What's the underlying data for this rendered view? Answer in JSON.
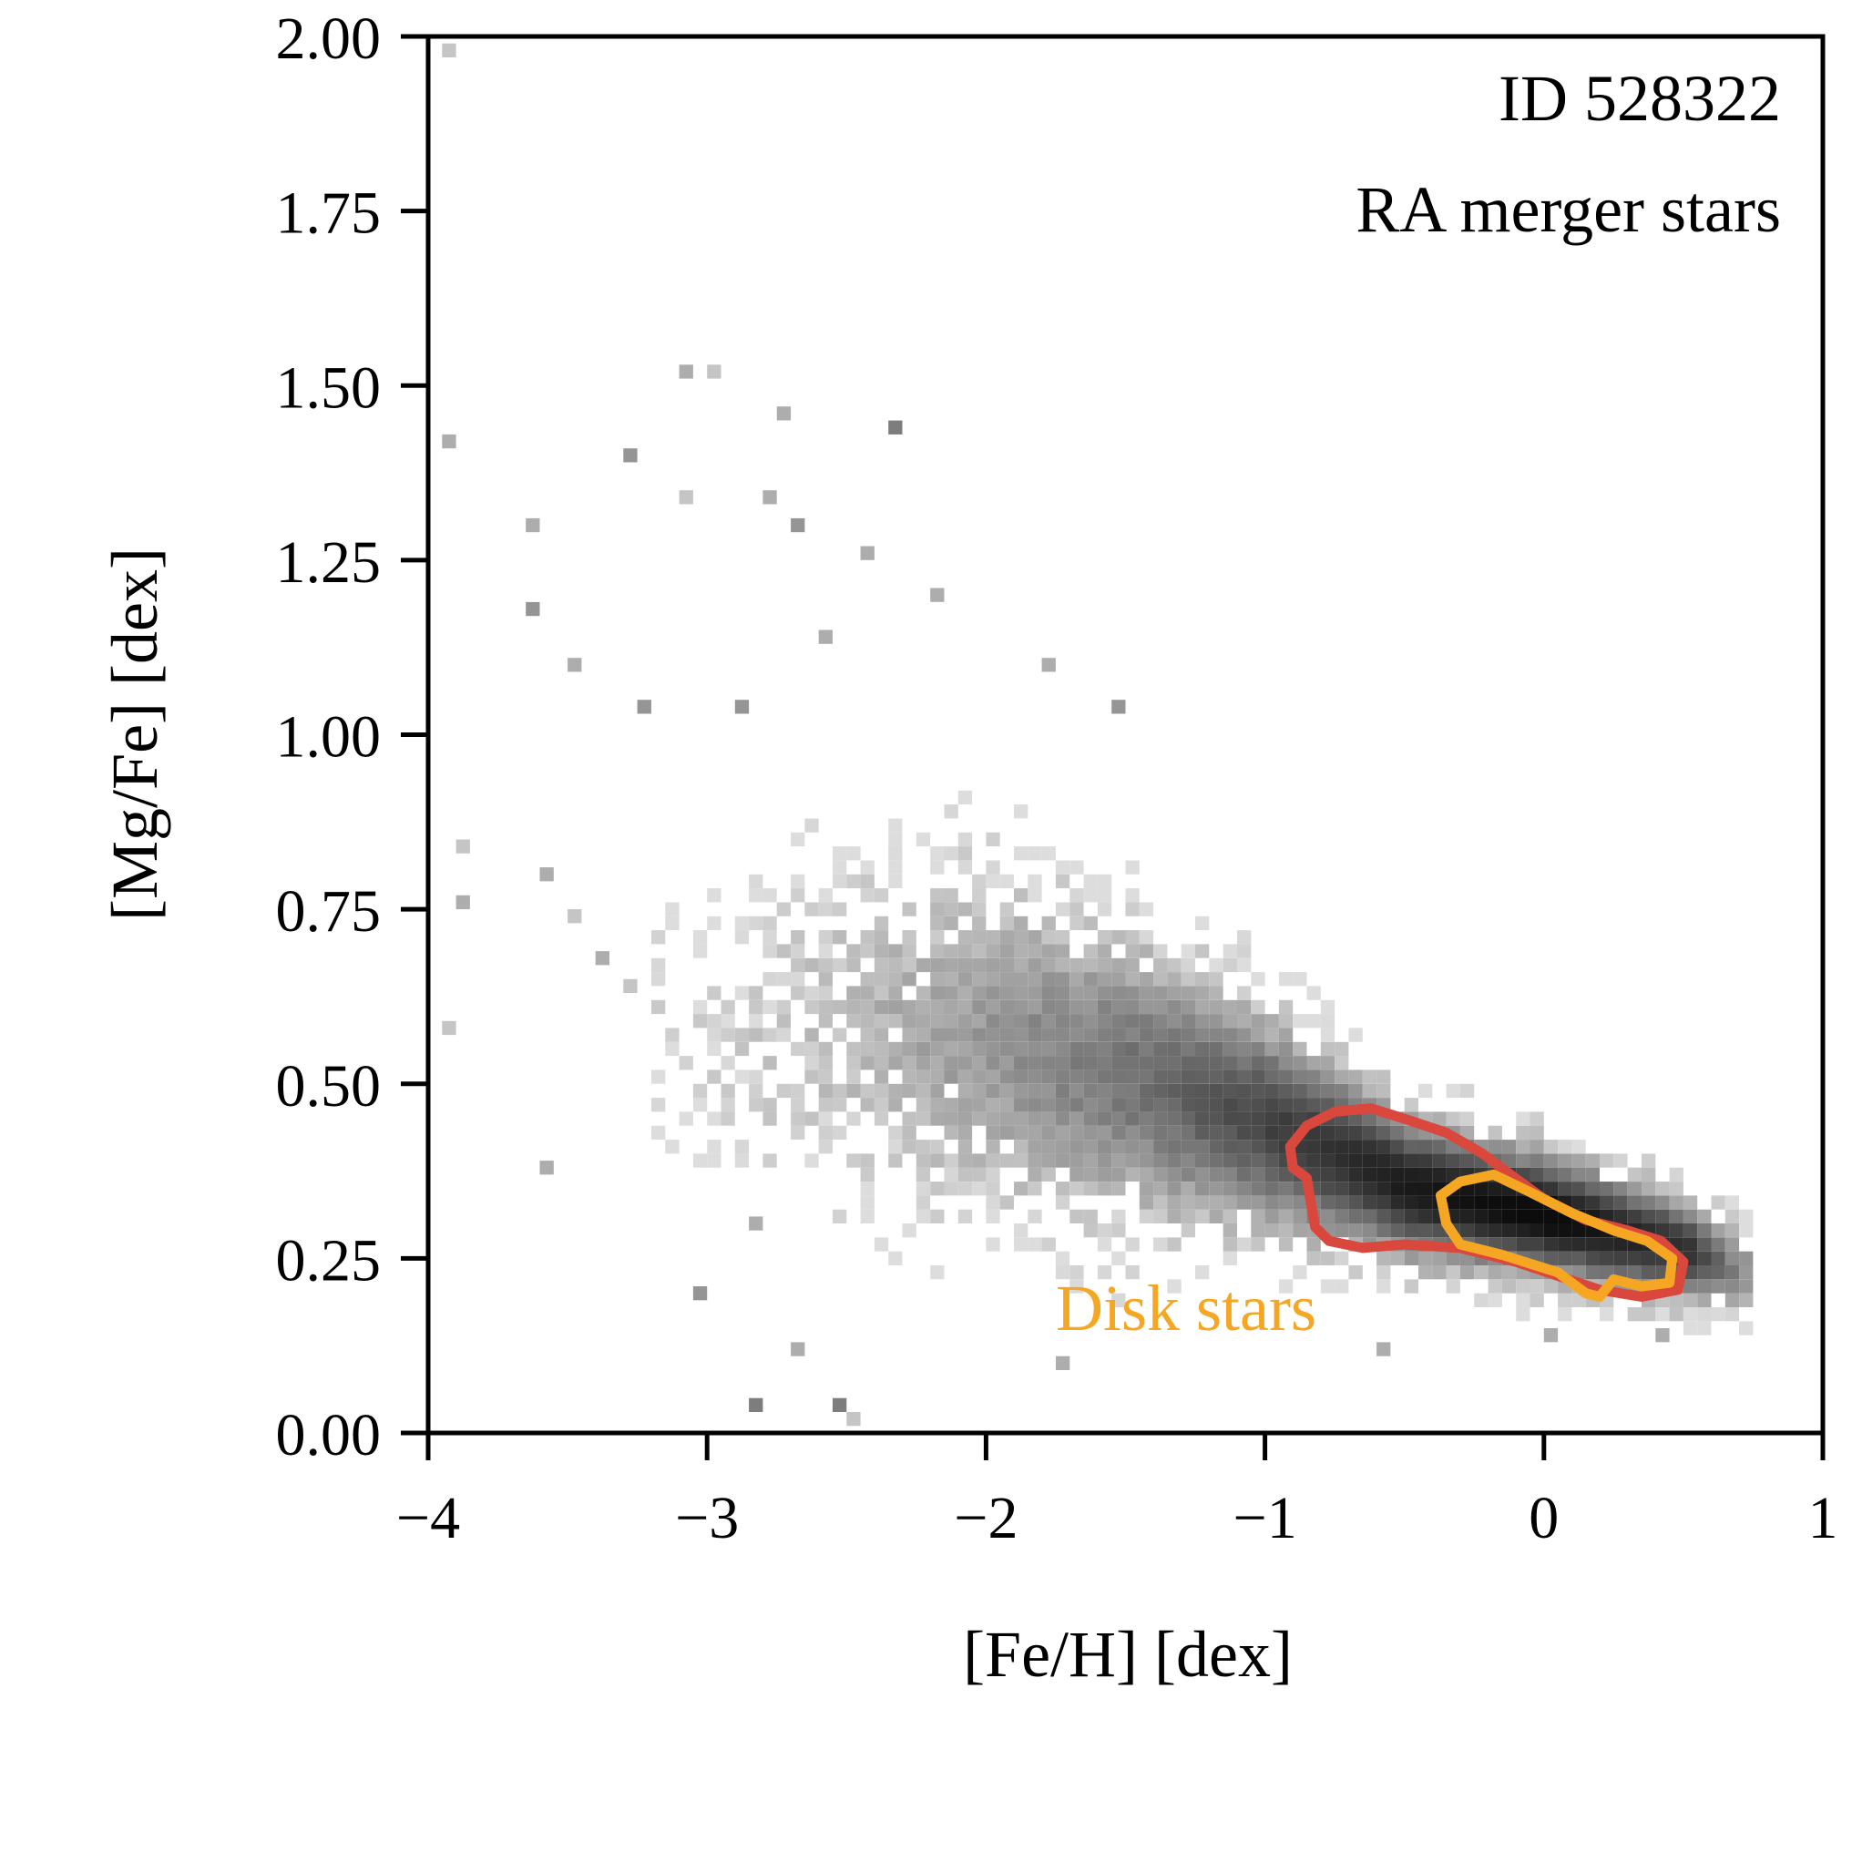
{
  "chart_data": {
    "type": "heatmap",
    "title": "",
    "xlabel": "[Fe/H] [dex]",
    "ylabel": "[Mg/Fe] [dex]",
    "xlim": [
      -4,
      1
    ],
    "ylim": [
      0,
      2
    ],
    "xticks": [
      -4,
      -3,
      -2,
      -1,
      0,
      1
    ],
    "xtick_labels": [
      "−4",
      "−3",
      "−2",
      "−1",
      "0",
      "1"
    ],
    "yticks": [
      0,
      0.25,
      0.5,
      0.75,
      1.0,
      1.25,
      1.5,
      1.75,
      2.0
    ],
    "ytick_labels": [
      "0.00",
      "0.25",
      "0.50",
      "0.75",
      "1.00",
      "1.25",
      "1.50",
      "1.75",
      "2.00"
    ],
    "grid": false,
    "colormap": "greys",
    "annotations": [
      "ID 528322",
      "RA merger stars"
    ],
    "density_ridge": [
      {
        "feh": -3.0,
        "mgfe": 0.56,
        "spread": 0.16,
        "density": 0.12
      },
      {
        "feh": -2.5,
        "mgfe": 0.58,
        "spread": 0.17,
        "density": 0.25
      },
      {
        "feh": -2.0,
        "mgfe": 0.56,
        "spread": 0.17,
        "density": 0.4
      },
      {
        "feh": -1.5,
        "mgfe": 0.51,
        "spread": 0.14,
        "density": 0.55
      },
      {
        "feh": -1.0,
        "mgfe": 0.44,
        "spread": 0.1,
        "density": 0.75
      },
      {
        "feh": -0.5,
        "mgfe": 0.35,
        "spread": 0.07,
        "density": 0.92
      },
      {
        "feh": 0.0,
        "mgfe": 0.31,
        "spread": 0.06,
        "density": 1.0
      },
      {
        "feh": 0.5,
        "mgfe": 0.26,
        "spread": 0.05,
        "density": 0.8
      },
      {
        "feh": 0.7,
        "mgfe": 0.23,
        "spread": 0.04,
        "density": 0.4
      }
    ],
    "contours": [
      {
        "name": "",
        "color": "#d9473d",
        "points": [
          [
            -0.91,
            0.41
          ],
          [
            -0.85,
            0.44
          ],
          [
            -0.75,
            0.46
          ],
          [
            -0.62,
            0.465
          ],
          [
            -0.5,
            0.45
          ],
          [
            -0.35,
            0.43
          ],
          [
            -0.22,
            0.4
          ],
          [
            -0.12,
            0.37
          ],
          [
            0.0,
            0.335
          ],
          [
            0.15,
            0.305
          ],
          [
            0.3,
            0.29
          ],
          [
            0.42,
            0.275
          ],
          [
            0.5,
            0.245
          ],
          [
            0.48,
            0.205
          ],
          [
            0.35,
            0.195
          ],
          [
            0.2,
            0.205
          ],
          [
            0.05,
            0.225
          ],
          [
            -0.1,
            0.245
          ],
          [
            -0.3,
            0.265
          ],
          [
            -0.5,
            0.27
          ],
          [
            -0.65,
            0.265
          ],
          [
            -0.77,
            0.275
          ],
          [
            -0.82,
            0.295
          ],
          [
            -0.84,
            0.34
          ],
          [
            -0.85,
            0.365
          ],
          [
            -0.9,
            0.38
          ],
          [
            -0.91,
            0.41
          ]
        ]
      },
      {
        "name": "Disk stars",
        "color": "#f5a623",
        "points": [
          [
            -0.37,
            0.34
          ],
          [
            -0.3,
            0.36
          ],
          [
            -0.18,
            0.37
          ],
          [
            -0.05,
            0.345
          ],
          [
            0.1,
            0.315
          ],
          [
            0.25,
            0.29
          ],
          [
            0.37,
            0.275
          ],
          [
            0.46,
            0.25
          ],
          [
            0.45,
            0.215
          ],
          [
            0.35,
            0.21
          ],
          [
            0.25,
            0.22
          ],
          [
            0.2,
            0.195
          ],
          [
            0.15,
            0.2
          ],
          [
            0.05,
            0.23
          ],
          [
            -0.15,
            0.255
          ],
          [
            -0.3,
            0.27
          ],
          [
            -0.35,
            0.3
          ],
          [
            -0.37,
            0.34
          ]
        ]
      }
    ],
    "contour_label": "Disk stars",
    "contour_label_color": "#f5a623",
    "contour_label_position": {
      "feh": -1.75,
      "mgfe": 0.15
    },
    "sparse_pixels": [
      {
        "feh": -3.95,
        "mgfe": 1.97,
        "shade": 0.2
      },
      {
        "feh": -3.95,
        "mgfe": 1.41,
        "shade": 0.3
      },
      {
        "feh": -3.9,
        "mgfe": 0.83,
        "shade": 0.2
      },
      {
        "feh": -3.9,
        "mgfe": 0.75,
        "shade": 0.3
      },
      {
        "feh": -3.95,
        "mgfe": 0.57,
        "shade": 0.2
      },
      {
        "feh": -3.65,
        "mgfe": 1.29,
        "shade": 0.3
      },
      {
        "feh": -3.65,
        "mgfe": 1.17,
        "shade": 0.4
      },
      {
        "feh": -3.6,
        "mgfe": 0.37,
        "shade": 0.3
      },
      {
        "feh": -3.1,
        "mgfe": 1.51,
        "shade": 0.3
      },
      {
        "feh": -3.0,
        "mgfe": 1.51,
        "shade": 0.2
      },
      {
        "feh": -3.3,
        "mgfe": 1.39,
        "shade": 0.4
      },
      {
        "feh": -2.75,
        "mgfe": 1.45,
        "shade": 0.3
      },
      {
        "feh": -2.35,
        "mgfe": 1.43,
        "shade": 0.5
      },
      {
        "feh": -2.8,
        "mgfe": 1.33,
        "shade": 0.3
      },
      {
        "feh": -2.7,
        "mgfe": 1.29,
        "shade": 0.4
      },
      {
        "feh": -2.45,
        "mgfe": 1.25,
        "shade": 0.3
      },
      {
        "feh": -3.1,
        "mgfe": 1.33,
        "shade": 0.2
      },
      {
        "feh": -3.5,
        "mgfe": 1.09,
        "shade": 0.3
      },
      {
        "feh": -3.25,
        "mgfe": 1.03,
        "shade": 0.4
      },
      {
        "feh": -2.9,
        "mgfe": 1.03,
        "shade": 0.4
      },
      {
        "feh": -2.6,
        "mgfe": 1.13,
        "shade": 0.3
      },
      {
        "feh": -2.2,
        "mgfe": 1.19,
        "shade": 0.3
      },
      {
        "feh": -1.8,
        "mgfe": 1.09,
        "shade": 0.3
      },
      {
        "feh": -1.55,
        "mgfe": 1.03,
        "shade": 0.4
      },
      {
        "feh": -3.6,
        "mgfe": 0.79,
        "shade": 0.3
      },
      {
        "feh": -3.5,
        "mgfe": 0.73,
        "shade": 0.2
      },
      {
        "feh": -3.4,
        "mgfe": 0.67,
        "shade": 0.3
      },
      {
        "feh": -3.3,
        "mgfe": 0.63,
        "shade": 0.2
      },
      {
        "feh": -2.85,
        "mgfe": 0.03,
        "shade": 0.5
      },
      {
        "feh": -2.55,
        "mgfe": 0.03,
        "shade": 0.5
      },
      {
        "feh": -2.5,
        "mgfe": 0.01,
        "shade": 0.2
      },
      {
        "feh": -2.7,
        "mgfe": 0.11,
        "shade": 0.3
      },
      {
        "feh": -1.75,
        "mgfe": 0.09,
        "shade": 0.3
      },
      {
        "feh": -3.05,
        "mgfe": 0.19,
        "shade": 0.4
      },
      {
        "feh": -2.85,
        "mgfe": 0.29,
        "shade": 0.3
      },
      {
        "feh": -0.6,
        "mgfe": 0.11,
        "shade": 0.3
      },
      {
        "feh": 0.0,
        "mgfe": 0.13,
        "shade": 0.3
      },
      {
        "feh": 0.4,
        "mgfe": 0.13,
        "shade": 0.3
      }
    ]
  }
}
